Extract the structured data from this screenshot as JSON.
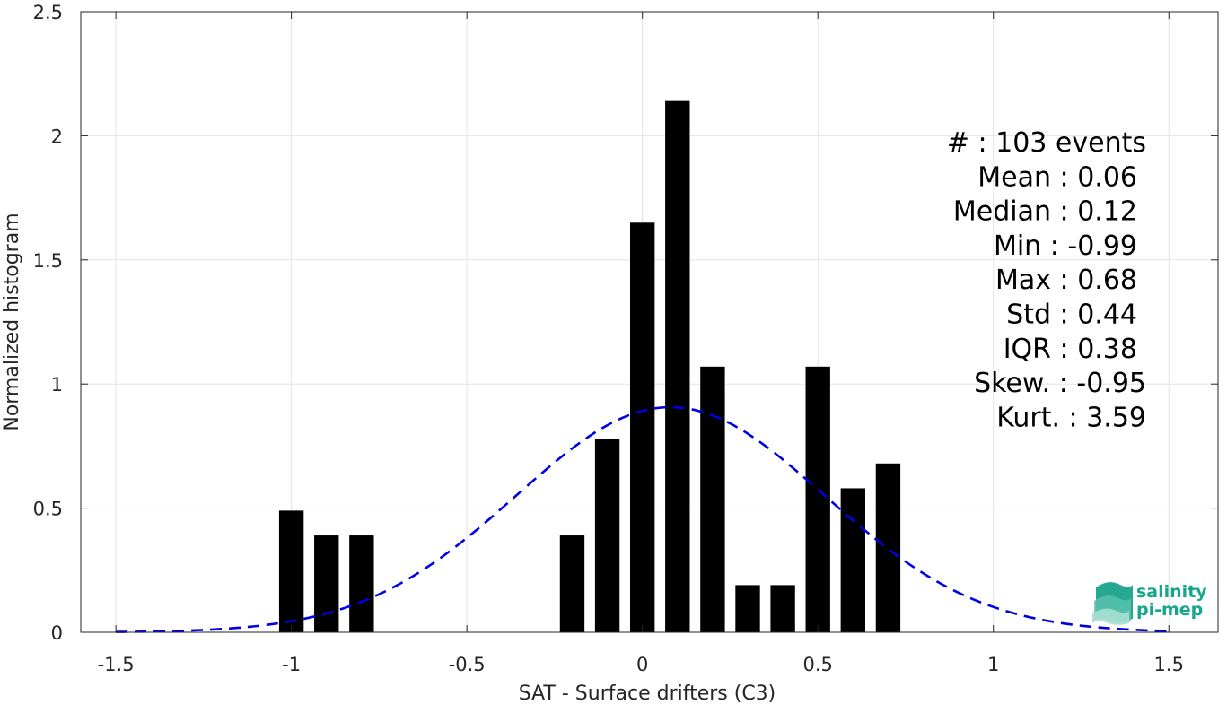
{
  "chart_data": {
    "type": "bar",
    "xlabel": "SAT - Surface drifters (C3)",
    "ylabel": "Normalized histogram",
    "xlim": [
      -1.6,
      1.64
    ],
    "ylim": [
      0,
      2.5
    ],
    "xticks": [
      -1.5,
      -1,
      -0.5,
      0,
      0.5,
      1,
      1.5
    ],
    "xtick_labels": [
      "-1.5",
      "-1",
      "-0.5",
      "0",
      "0.5",
      "1",
      "1.5"
    ],
    "yticks": [
      0,
      0.5,
      1,
      1.5,
      2,
      2.5
    ],
    "ytick_labels": [
      "0",
      "0.5",
      "1",
      "1.5",
      "2",
      "2.5"
    ],
    "grid": true,
    "bar_width": 0.07,
    "bars": [
      {
        "x": -1.0,
        "value": 0.49
      },
      {
        "x": -0.9,
        "value": 0.39
      },
      {
        "x": -0.8,
        "value": 0.39
      },
      {
        "x": -0.2,
        "value": 0.39
      },
      {
        "x": -0.1,
        "value": 0.78
      },
      {
        "x": 0.0,
        "value": 1.65
      },
      {
        "x": 0.1,
        "value": 2.14
      },
      {
        "x": 0.2,
        "value": 1.07
      },
      {
        "x": 0.3,
        "value": 0.19
      },
      {
        "x": 0.4,
        "value": 0.19
      },
      {
        "x": 0.5,
        "value": 1.07
      },
      {
        "x": 0.6,
        "value": 0.58
      },
      {
        "x": 0.7,
        "value": 0.68
      }
    ],
    "bar_color": "#000000",
    "fit_curve": {
      "type": "normal",
      "mean": 0.08,
      "std": 0.44,
      "x_range": [
        -1.5,
        1.5
      ],
      "color": "#0000e6",
      "style": "dashed"
    },
    "stats": [
      {
        "label": "#  : 103 events"
      },
      {
        "label": "Mean : 0.06"
      },
      {
        "label": "Median : 0.12"
      },
      {
        "label": "Min : -0.99"
      },
      {
        "label": "Max : 0.68"
      },
      {
        "label": "Std : 0.44"
      },
      {
        "label": "IQR : 0.38"
      },
      {
        "label": "Skew. : -0.95"
      },
      {
        "label": "Kurt. : 3.59"
      }
    ]
  },
  "logo": {
    "line1": "salinity",
    "line2": "pi-mep",
    "color": "#17a58c"
  }
}
